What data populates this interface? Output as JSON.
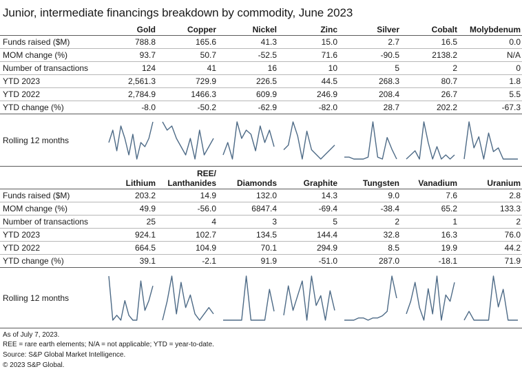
{
  "title": "Junior, intermediate financings breakdown by commodity, June 2023",
  "chart_data": [
    {
      "type": "table",
      "columns": [
        "Gold",
        "Copper",
        "Nickel",
        "Zinc",
        "Silver",
        "Cobalt",
        "Molybdenum"
      ],
      "rows": [
        {
          "label": "Funds raised ($M)",
          "values": [
            "788.8",
            "165.6",
            "41.3",
            "15.0",
            "2.7",
            "16.5",
            "0.0"
          ]
        },
        {
          "label": "MOM change (%)",
          "values": [
            "93.7",
            "50.7",
            "-52.5",
            "71.6",
            "-90.5",
            "2138.2",
            "N/A"
          ]
        },
        {
          "label": "Number of transactions",
          "values": [
            "124",
            "41",
            "16",
            "10",
            "5",
            "2",
            "0"
          ]
        },
        {
          "label": "YTD 2023",
          "values": [
            "2,561.3",
            "729.9",
            "226.5",
            "44.5",
            "268.3",
            "80.7",
            "1.8"
          ]
        },
        {
          "label": "YTD 2022",
          "values": [
            "2,784.9",
            "1466.3",
            "609.9",
            "246.9",
            "208.4",
            "26.7",
            "5.5"
          ]
        },
        {
          "label": "YTD change (%)",
          "values": [
            "-8.0",
            "-50.2",
            "-62.9",
            "-82.0",
            "28.7",
            "202.2",
            "-67.3"
          ]
        }
      ],
      "sparkline_label": "Rolling 12 months",
      "sparklines": [
        [
          5,
          8,
          3,
          9,
          6,
          2,
          7,
          1,
          5,
          4,
          6,
          10
        ],
        [
          10,
          8,
          9,
          6,
          4,
          2,
          6,
          1,
          8,
          2,
          4,
          6
        ],
        [
          2,
          5,
          1,
          10,
          6,
          8,
          7,
          3,
          9,
          5,
          8,
          4
        ],
        [
          3,
          4,
          9,
          6,
          1,
          7,
          3,
          2,
          1,
          2,
          3,
          4
        ],
        [
          1,
          1,
          0.5,
          0.5,
          0.5,
          1,
          10,
          1,
          0.5,
          6,
          3,
          0.5
        ],
        [
          0,
          1,
          2,
          0,
          9,
          4,
          0,
          3,
          0,
          1,
          0,
          1
        ],
        [
          0,
          10,
          3,
          6,
          0,
          7,
          2,
          3,
          0,
          0,
          0,
          0
        ]
      ]
    },
    {
      "type": "table",
      "columns": [
        "Lithium",
        "REE/ Lanthanides",
        "Diamonds",
        "Graphite",
        "Tungsten",
        "Vanadium",
        "Uranium"
      ],
      "column_lines": [
        [
          "Lithium"
        ],
        [
          "REE/",
          "Lanthanides"
        ],
        [
          "Diamonds"
        ],
        [
          "Graphite"
        ],
        [
          "Tungsten"
        ],
        [
          "Vanadium"
        ],
        [
          "Uranium"
        ]
      ],
      "rows": [
        {
          "label": "Funds raised ($M)",
          "values": [
            "203.2",
            "14.9",
            "132.0",
            "14.3",
            "9.0",
            "7.6",
            "2.8"
          ]
        },
        {
          "label": "MOM change (%)",
          "values": [
            "49.9",
            "-56.0",
            "6847.4",
            "-69.4",
            "-38.4",
            "65.2",
            "133.3"
          ]
        },
        {
          "label": "Number of transactions",
          "values": [
            "25",
            "4",
            "3",
            "5",
            "2",
            "1",
            "2"
          ]
        },
        {
          "label": "YTD 2023",
          "values": [
            "924.1",
            "102.7",
            "134.5",
            "144.4",
            "32.8",
            "16.3",
            "76.0"
          ]
        },
        {
          "label": "YTD 2022",
          "values": [
            "664.5",
            "104.9",
            "70.1",
            "294.9",
            "8.5",
            "19.9",
            "44.2"
          ]
        },
        {
          "label": "YTD change (%)",
          "values": [
            "39.1",
            "-2.1",
            "91.9",
            "-51.0",
            "287.0",
            "-18.1",
            "71.9"
          ]
        }
      ],
      "sparkline_label": "Rolling 12 months",
      "sparklines": [
        [
          10,
          1,
          2,
          1,
          5,
          2,
          1,
          1,
          9,
          3,
          5,
          8
        ],
        [
          1,
          4,
          8,
          2,
          7,
          3,
          5,
          2,
          1,
          2,
          3,
          2
        ],
        [
          0,
          0,
          0,
          0,
          0,
          10,
          0,
          0,
          0,
          0,
          7,
          2
        ],
        [
          2,
          8,
          3,
          6,
          9,
          1,
          10,
          4,
          6,
          1,
          7,
          3
        ],
        [
          0,
          0,
          0,
          0.5,
          0.5,
          0,
          0.5,
          0.5,
          1,
          2,
          10,
          5
        ],
        [
          1,
          3,
          6,
          2,
          0,
          5,
          1,
          7,
          0,
          4,
          3,
          6
        ],
        [
          0,
          2,
          0,
          0,
          0,
          0,
          10,
          3,
          7,
          0,
          0,
          0
        ]
      ]
    }
  ],
  "footnotes": [
    "As of July 7, 2023.",
    "REE = rare earth elements; N/A = not applicable; YTD = year-to-date.",
    "Source: S&P Global Market Intelligence.",
    "© 2023 S&P Global."
  ]
}
